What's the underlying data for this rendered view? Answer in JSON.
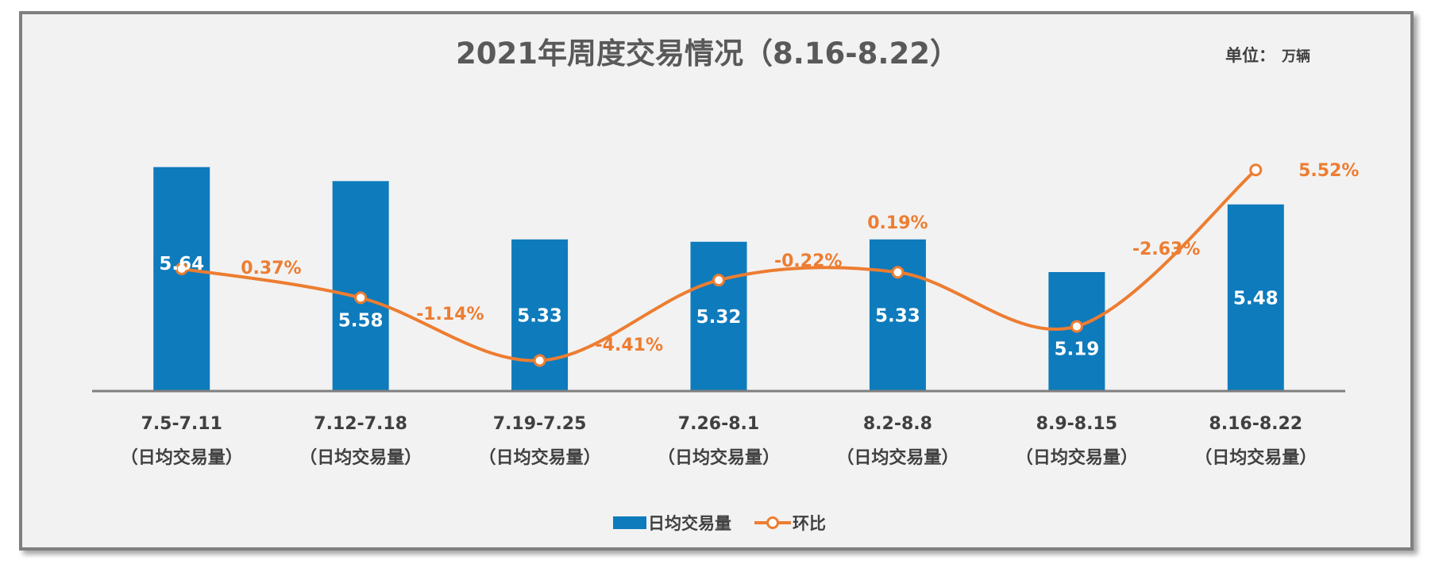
{
  "chart_data": {
    "type": "bar+line",
    "title": "2021年周度交易情况（8.16-8.22）",
    "unit_label": "单位：",
    "unit_value": "万辆",
    "categories": [
      "7.5-7.11",
      "7.12-7.18",
      "7.19-7.25",
      "7.26-8.1",
      "8.2-8.8",
      "8.9-8.15",
      "8.16-8.22"
    ],
    "category_sublabel": "（日均交易量）",
    "series": [
      {
        "name": "日均交易量",
        "type": "bar",
        "values": [
          5.64,
          5.58,
          5.33,
          5.32,
          5.33,
          5.19,
          5.48
        ],
        "labels": [
          "5.64",
          "5.58",
          "5.33",
          "5.32",
          "5.33",
          "5.19",
          "5.48"
        ],
        "color": "#0e7bbc"
      },
      {
        "name": "环比",
        "type": "line",
        "values": [
          0.37,
          -1.14,
          -4.41,
          -0.22,
          0.19,
          -2.63,
          5.52
        ],
        "labels": [
          "0.37%",
          "-1.14%",
          "-4.41%",
          "-0.22%",
          "0.19%",
          "-2.63%",
          "5.52%"
        ],
        "color": "#ed7d31"
      }
    ],
    "bar_axis_range": [
      4.68,
      5.87
    ],
    "line_axis_range": [
      -6.0,
      14.0
    ],
    "legend_position": "bottom"
  }
}
